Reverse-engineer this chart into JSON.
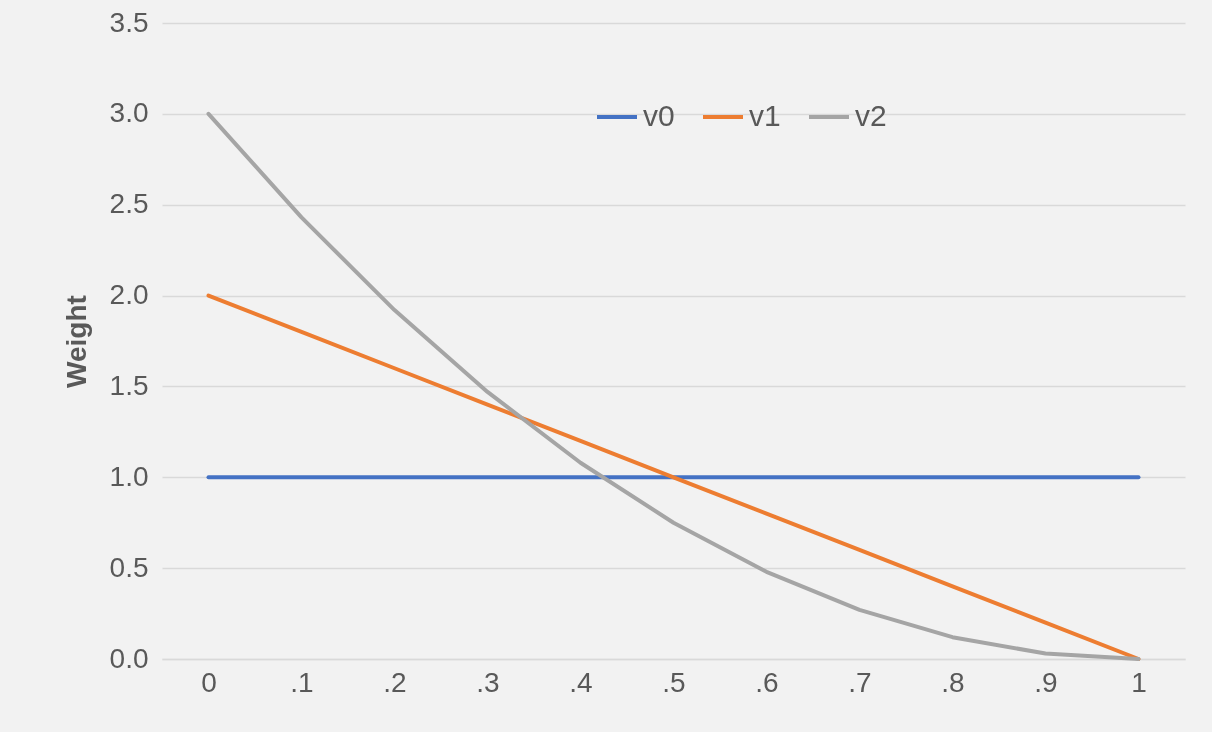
{
  "chart_data": {
    "type": "line",
    "ylabel": "Weight",
    "categories": [
      "0",
      ".1",
      ".2",
      ".3",
      ".4",
      ".5",
      ".6",
      ".7",
      ".8",
      ".9",
      "1"
    ],
    "series": [
      {
        "name": "v0",
        "color": "#4472c4",
        "values": [
          1,
          1,
          1,
          1,
          1,
          1,
          1,
          1,
          1,
          1,
          1
        ]
      },
      {
        "name": "v1",
        "color": "#ed7d31",
        "values": [
          2,
          1.8,
          1.6,
          1.4,
          1.2,
          1,
          0.8,
          0.6,
          0.4,
          0.2,
          0
        ]
      },
      {
        "name": "v2",
        "color": "#a5a5a5",
        "values": [
          3,
          2.43,
          1.92,
          1.47,
          1.08,
          0.75,
          0.48,
          0.27,
          0.12,
          0.03,
          0
        ]
      }
    ],
    "ylim": [
      0,
      3.5
    ],
    "yticks": [
      {
        "value": 0,
        "label": "0.0"
      },
      {
        "value": 0.5,
        "label": "0.5"
      },
      {
        "value": 1,
        "label": "1.0"
      },
      {
        "value": 1.5,
        "label": "1.5"
      },
      {
        "value": 2,
        "label": "2.0"
      },
      {
        "value": 2.5,
        "label": "2.5"
      },
      {
        "value": 3,
        "label": "3.0"
      },
      {
        "value": 3.5,
        "label": "3.5"
      }
    ],
    "grid": "y",
    "legend": "top",
    "marker": "none",
    "line_style": "solid"
  }
}
